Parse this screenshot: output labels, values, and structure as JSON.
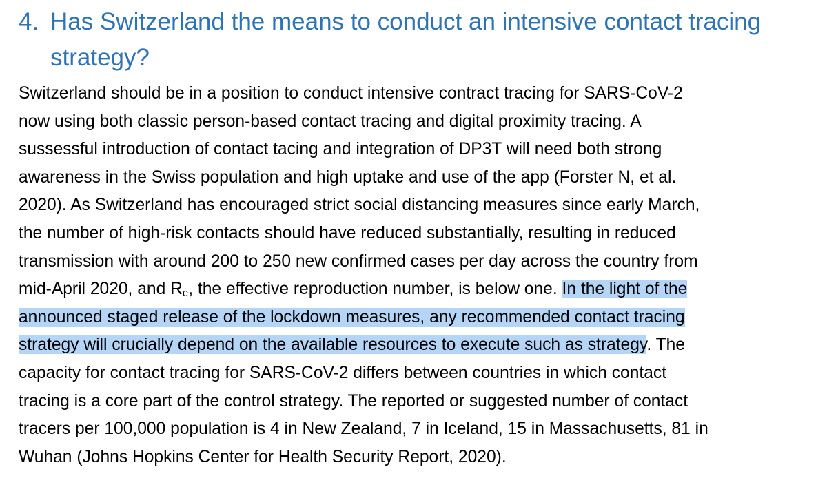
{
  "section": {
    "number": "4.",
    "title_line1": "Has Switzerland the means to conduct an intensive contact tracing",
    "title_line2": "strategy?"
  },
  "paragraph": {
    "lines": [
      "Switzerland should be in a position to conduct intensive contract tracing for SARS-CoV-2",
      "now using both classic person-based contact tracing and digital proximity tracing. A",
      "sussessful introduction of contact tacing and integration of DP3T will need both strong",
      "awareness in the Swiss population and high uptake and use of the app (Forster N, et al.",
      "2020). As Switzerland has encouraged strict social distancing measures since early March,",
      "the number of high-risk contacts should have reduced substantially, resulting in reduced",
      "transmission with around 200 to 250 new confirmed cases per day across the country from"
    ],
    "line8_start": "mid-April 2020, and R",
    "line8_subscript": "e",
    "line8_rest": ", the effective reproduction number, is below one. ",
    "line8_highlight": "In the light of the",
    "line9_highlight": "announced staged release of the lockdown measures, any recommended contact tracing",
    "line10_highlight": "strategy will crucially depend on the available resources to execute such as strategy",
    "line10_rest": ". The",
    "tail_lines": [
      "capacity for contact tracing for SARS-CoV-2 differs between countries in which contact",
      "tracing is a core part of the control strategy. The reported or suggested number of contact",
      "tracers per 100,000 population is 4 in New Zealand, 7 in Iceland, 15 in Massachusetts, 81 in",
      "Wuhan (Johns Hopkins Center for Health Security Report, 2020)."
    ]
  },
  "colors": {
    "heading": "#2e74b5",
    "text": "#000000",
    "selection_highlight": "#b4d5f6"
  }
}
